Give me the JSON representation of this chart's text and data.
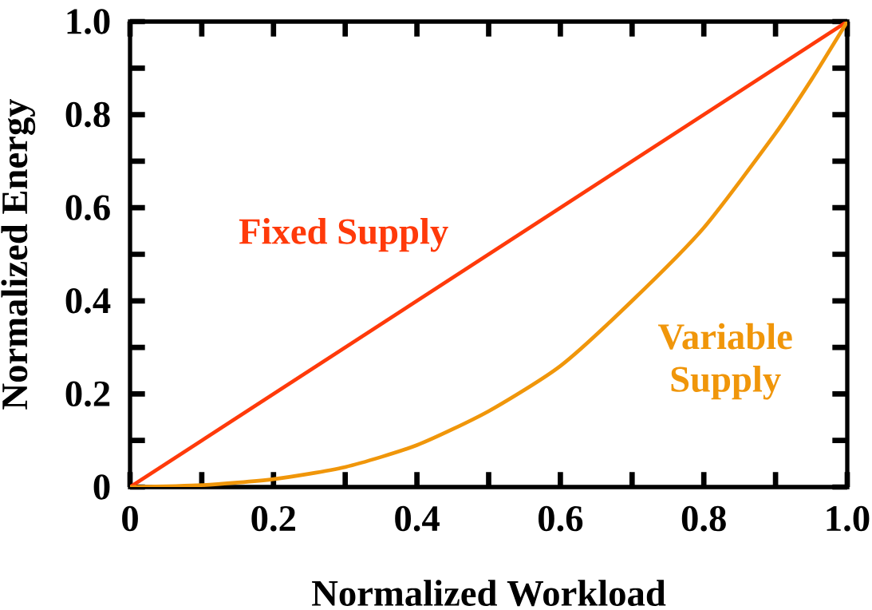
{
  "chart_data": {
    "type": "line",
    "xlabel": "Normalized Workload",
    "ylabel": "Normalized Energy",
    "series": [
      {
        "name": "Fixed Supply",
        "color": "#ff3a0a",
        "x": [
          0,
          1
        ],
        "values": [
          0,
          1
        ]
      },
      {
        "name": "Variable Supply",
        "color": "#f0960a",
        "x": [
          0,
          0.1,
          0.2,
          0.3,
          0.4,
          0.5,
          0.6,
          0.7,
          0.8,
          0.9,
          0.95,
          1.0
        ],
        "values": [
          0,
          0.004,
          0.017,
          0.043,
          0.09,
          0.163,
          0.26,
          0.4,
          0.557,
          0.76,
          0.875,
          1.0
        ]
      }
    ],
    "xlim": [
      0,
      1
    ],
    "ylim": [
      0,
      1
    ],
    "xticks": [
      0,
      {
        "value": 0.2,
        "label": "0.2"
      },
      {
        "value": 0.4,
        "label": "0.4"
      },
      {
        "value": 0.6,
        "label": "0.6"
      },
      {
        "value": 0.8,
        "label": "0.8"
      },
      {
        "value": 1.0,
        "label": "1.0"
      }
    ],
    "yticks": [
      0,
      {
        "value": 0.2,
        "label": "0.2"
      },
      {
        "value": 0.4,
        "label": "0.4"
      },
      {
        "value": 0.6,
        "label": "0.6"
      },
      {
        "value": 0.8,
        "label": "0.8"
      },
      {
        "value": 1.0,
        "label": "1.0"
      }
    ],
    "grid": false,
    "legend": false,
    "marker": "none",
    "line_style": "solid"
  }
}
